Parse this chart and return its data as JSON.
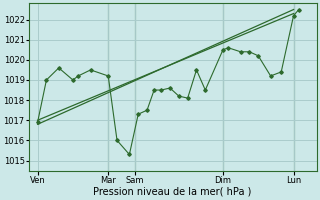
{
  "background_color": "#cce8e8",
  "grid_color": "#aacccc",
  "line_color": "#2d6a2d",
  "xlabel": "Pression niveau de la mer( hPa )",
  "ylim": [
    1014.5,
    1022.8
  ],
  "yticks": [
    1015,
    1016,
    1017,
    1018,
    1019,
    1020,
    1021,
    1022
  ],
  "xtick_labels": [
    "Ven",
    "Mar",
    "Sam",
    "Dim",
    "Lun"
  ],
  "xtick_positions": [
    0,
    40,
    55,
    105,
    145
  ],
  "xlim": [
    -5,
    158
  ],
  "vlines_x": [
    40,
    55,
    105,
    145
  ],
  "trend1_x": [
    0,
    145
  ],
  "trend1_y": [
    1017.0,
    1022.3
  ],
  "trend2_x": [
    0,
    145
  ],
  "trend2_y": [
    1016.8,
    1022.5
  ],
  "detail_x": [
    0,
    5,
    12,
    20,
    23,
    30,
    40,
    45,
    52,
    57,
    62,
    66,
    70,
    75,
    80,
    85,
    90,
    95,
    105,
    108,
    115,
    120,
    125,
    132,
    138,
    145,
    148
  ],
  "detail_y": [
    1016.9,
    1019.0,
    1019.6,
    1019.0,
    1019.2,
    1019.5,
    1019.2,
    1016.0,
    1015.3,
    1017.3,
    1017.5,
    1018.5,
    1018.5,
    1018.6,
    1018.2,
    1018.1,
    1019.5,
    1018.5,
    1020.5,
    1020.6,
    1020.4,
    1020.4,
    1020.2,
    1019.2,
    1019.4,
    1022.2,
    1022.5
  ],
  "marker": "D",
  "markersize": 1.8,
  "xlabel_fontsize": 7,
  "tick_fontsize": 6
}
